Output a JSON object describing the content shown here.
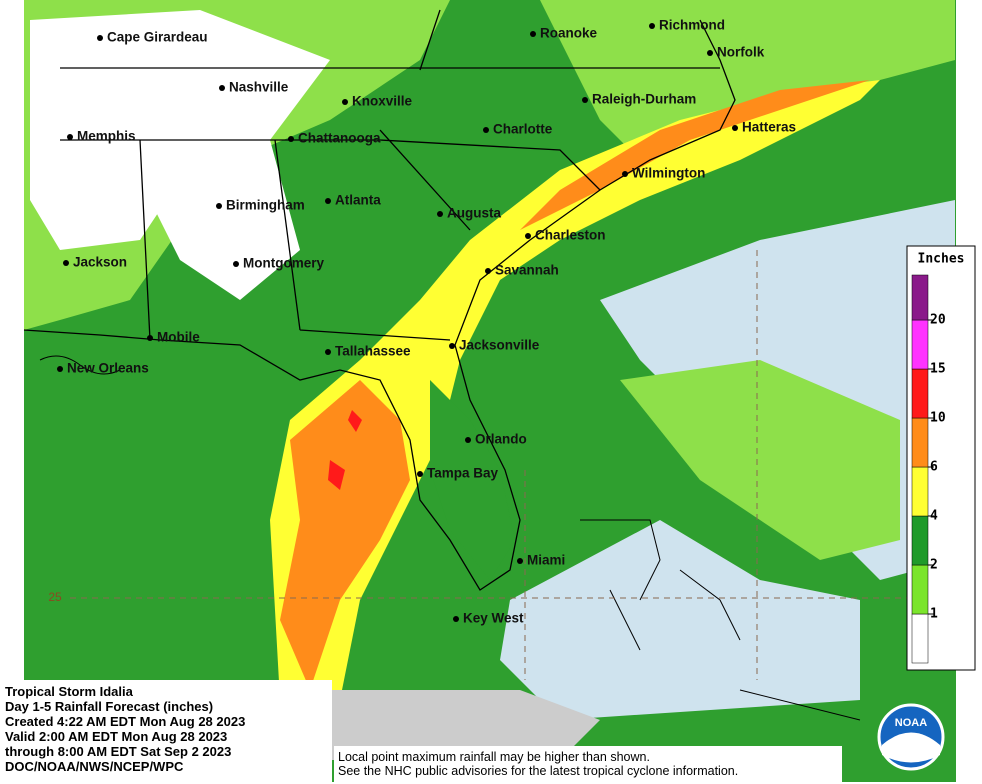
{
  "map": {
    "cities": [
      "Cape Girardeau",
      "Roanoke",
      "Richmond",
      "Norfolk",
      "Nashville",
      "Knoxville",
      "Raleigh-Durham",
      "Memphis",
      "Chattanooga",
      "Charlotte",
      "Hatteras",
      "Wilmington",
      "Birmingham",
      "Atlanta",
      "Augusta",
      "Charleston",
      "Jackson",
      "Montgomery",
      "Savannah",
      "Mobile",
      "Tallahassee",
      "Jacksonville",
      "New Orleans",
      "Orlando",
      "Tampa Bay",
      "Miami",
      "Key West"
    ],
    "latitude_label": "25"
  },
  "legend": {
    "title": "Inches",
    "ticks": [
      1,
      2,
      4,
      6,
      10,
      15,
      20
    ],
    "colors": [
      "#ffffff",
      "#7be52c",
      "#1f9a2a",
      "#ffff33",
      "#ff8c1a",
      "#ff1a1a",
      "#ff33ff",
      "#8a1a8a"
    ]
  },
  "info": {
    "lines": [
      "Tropical Storm Idalia",
      "Day 1-5 Rainfall Forecast (inches)",
      "Created 4:22 AM EDT Mon Aug 28 2023",
      "Valid 2:00 AM EDT Mon Aug 28 2023",
      "through 8:00 AM EDT Sat Sep 2 2023",
      "DOC/NOAA/NWS/NCEP/WPC"
    ]
  },
  "footnote": {
    "lines": [
      "Local point maximum rainfall may be higher than shown.",
      "See the NHC public advisories for the latest tropical cyclone information."
    ]
  },
  "logo": "NOAA"
}
